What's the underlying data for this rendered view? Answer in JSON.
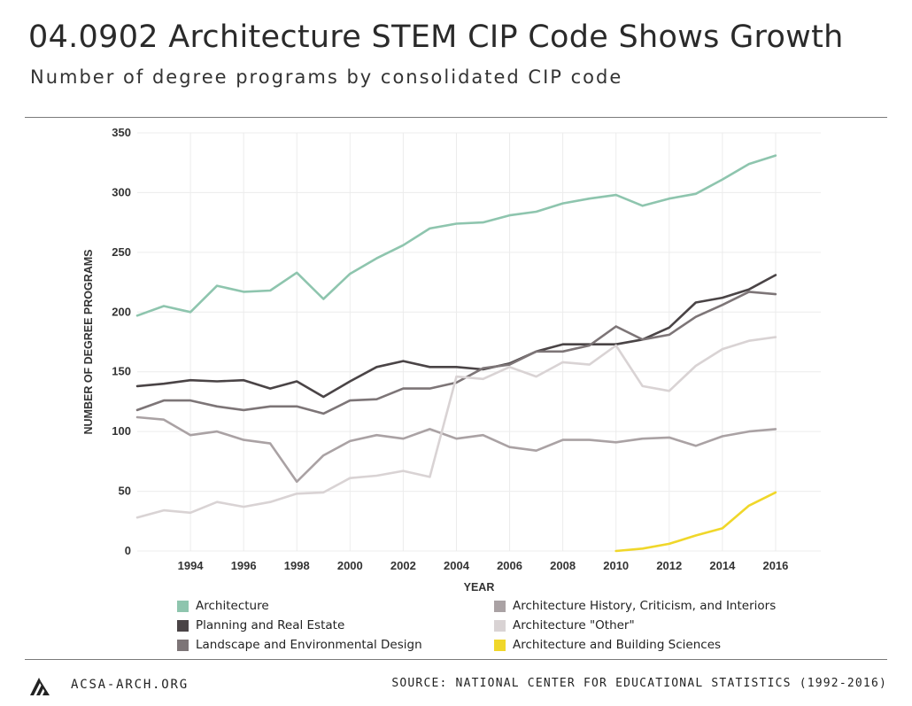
{
  "header": {
    "title": "04.0902 Architecture STEM CIP Code Shows Growth",
    "subtitle": "Number of degree programs by consolidated CIP code"
  },
  "footer": {
    "site": "ACSA-ARCH.ORG",
    "source": "SOURCE: NATIONAL CENTER FOR EDUCATIONAL STATISTICS (1992-2016)"
  },
  "chart_data": {
    "type": "line",
    "xlabel": "YEAR",
    "ylabel": "NUMBER OF DEGREE PROGRAMS",
    "xlim": [
      1992,
      2017.7
    ],
    "ylim": [
      0,
      350
    ],
    "xticks": [
      1994,
      1996,
      1998,
      2000,
      2002,
      2004,
      2006,
      2008,
      2010,
      2012,
      2014,
      2016
    ],
    "yticks": [
      0,
      50,
      100,
      150,
      200,
      250,
      300,
      350
    ],
    "grid": true,
    "legend_position": "bottom",
    "x": [
      1992,
      1993,
      1994,
      1995,
      1996,
      1997,
      1998,
      1999,
      2000,
      2001,
      2002,
      2003,
      2004,
      2005,
      2006,
      2007,
      2008,
      2009,
      2010,
      2011,
      2012,
      2013,
      2014,
      2015,
      2016
    ],
    "series": [
      {
        "name": "Architecture",
        "color": "#8ec5ae",
        "values": [
          197,
          205,
          200,
          222,
          217,
          218,
          233,
          211,
          232,
          245,
          256,
          270,
          274,
          275,
          281,
          284,
          291,
          295,
          298,
          289,
          295,
          299,
          311,
          324,
          331
        ]
      },
      {
        "name": "Planning and Real Estate",
        "color": "#4a4446",
        "values": [
          138,
          140,
          143,
          142,
          143,
          136,
          142,
          129,
          142,
          154,
          159,
          154,
          154,
          152,
          157,
          167,
          173,
          173,
          173,
          177,
          187,
          208,
          212,
          219,
          231
        ]
      },
      {
        "name": "Landscape and Environmental Design",
        "color": "#7d7577",
        "values": [
          118,
          126,
          126,
          121,
          118,
          121,
          121,
          115,
          126,
          127,
          136,
          136,
          141,
          153,
          156,
          167,
          167,
          172,
          188,
          177,
          181,
          196,
          206,
          217,
          215
        ]
      },
      {
        "name": "Architecture History, Criticism, and Interiors",
        "color": "#aaa2a4",
        "values": [
          112,
          110,
          97,
          100,
          93,
          90,
          58,
          80,
          92,
          97,
          94,
          102,
          94,
          97,
          87,
          84,
          93,
          93,
          91,
          94,
          95,
          88,
          96,
          100,
          102
        ]
      },
      {
        "name": "Architecture \"Other\"",
        "color": "#d9d3d4",
        "values": [
          28,
          34,
          32,
          41,
          37,
          41,
          48,
          49,
          61,
          63,
          67,
          62,
          146,
          144,
          154,
          146,
          158,
          156,
          172,
          138,
          134,
          155,
          169,
          176,
          179
        ]
      },
      {
        "name": "Architecture and Building Sciences",
        "color": "#f0d72a",
        "x": [
          2010,
          2011,
          2012,
          2013,
          2014,
          2015,
          2016
        ],
        "values": [
          0,
          2,
          6,
          13,
          19,
          38,
          49
        ]
      }
    ]
  }
}
